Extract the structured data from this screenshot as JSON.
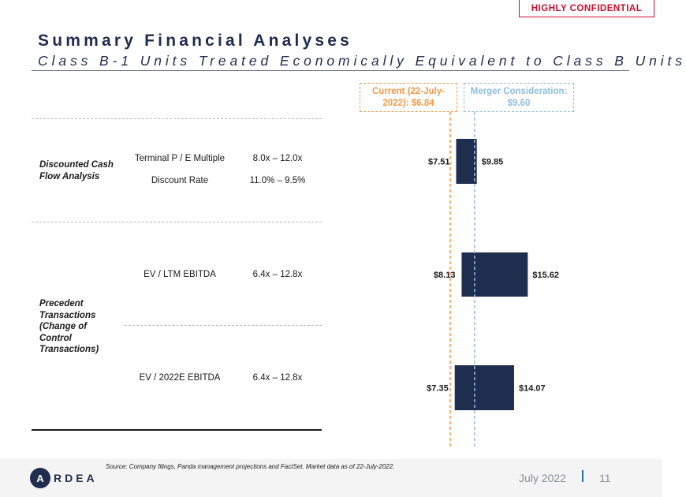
{
  "badge": "HIGHLY CONFIDENTIAL",
  "title": "Summary Financial Analyses",
  "subtitle": "Class B-1 Units Treated Economically Equivalent to Class B Units",
  "colors": {
    "navy": "#1f2d4e",
    "current_line": "#f39a45",
    "merger_line": "#8ebde0",
    "badge_red": "#c8102e"
  },
  "table": {
    "categories": [
      {
        "label": "Discounted Cash Flow Analysis"
      },
      {
        "label": "Precedent Transactions (Change of Control Transactions)"
      }
    ],
    "rows": [
      {
        "method": "Terminal P / E Multiple",
        "range": "8.0x – 12.0x"
      },
      {
        "method": "Discount Rate",
        "range": "11.0% – 9.5%"
      },
      {
        "method": "EV / LTM EBITDA",
        "range": "6.4x – 12.8x"
      },
      {
        "method": "EV / 2022E EBITDA",
        "range": "6.4x – 12.8x"
      }
    ]
  },
  "chart_data": {
    "type": "bar",
    "orientation": "horizontal-floating",
    "categories": [
      "Discounted Cash Flow Analysis",
      "EV / LTM EBITDA",
      "EV / 2022E EBITDA"
    ],
    "series": [
      {
        "low": 7.51,
        "high": 9.85
      },
      {
        "low": 8.13,
        "high": 15.62
      },
      {
        "low": 7.35,
        "high": 14.07
      }
    ],
    "low_labels": [
      "$7.51",
      "$8.13",
      "$7.35"
    ],
    "high_labels": [
      "$9.85",
      "$15.62",
      "$14.07"
    ],
    "reference_lines": [
      {
        "label": "Current (22-July-2022): $6.84",
        "value": 6.84,
        "color": "#f39a45"
      },
      {
        "label": "Merger Consideration: $9.60",
        "value": 9.6,
        "color": "#8ebde0"
      }
    ],
    "bar_color": "#1f2d4e"
  },
  "footer": {
    "source": "Source: Company filings, Panda management projections and FactSet. Market data as of 22-July-2022.",
    "logo_letter": "A",
    "logo_text": "RDEA",
    "date": "July 2022",
    "page": "11"
  }
}
